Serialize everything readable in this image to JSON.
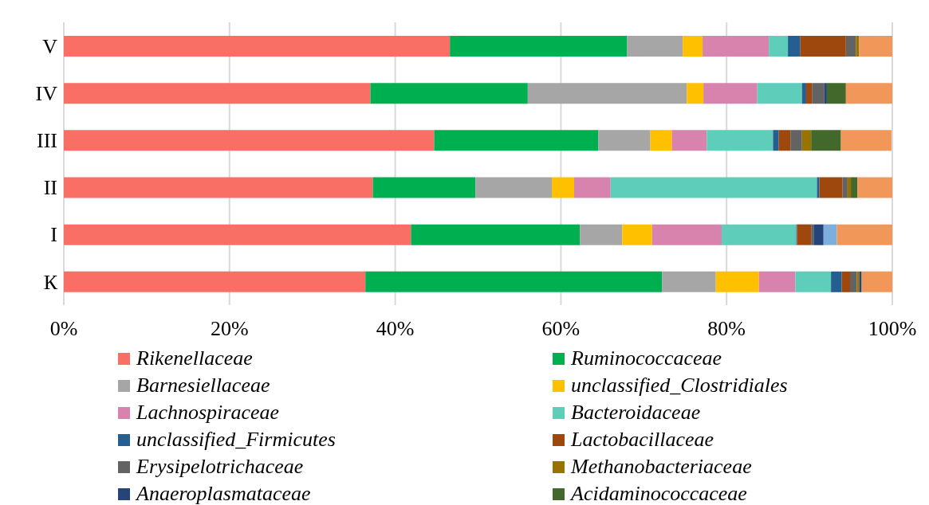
{
  "chart_data": {
    "type": "bar",
    "orientation": "horizontal",
    "stacked": true,
    "grid": "x",
    "legend": "bottom",
    "categories": [
      "V",
      "IV",
      "III",
      "II",
      "I",
      "К"
    ],
    "xlim": [
      0,
      100
    ],
    "xticks": [
      {
        "value": 0,
        "label": "0%"
      },
      {
        "value": 20,
        "label": "20%"
      },
      {
        "value": 40,
        "label": "40%"
      },
      {
        "value": 60,
        "label": "60%"
      },
      {
        "value": 80,
        "label": "80%"
      },
      {
        "value": 100,
        "label": "100%"
      }
    ],
    "series": [
      {
        "name": "Rikenellaceae",
        "color": "#f96f65",
        "values": [
          46.6,
          37.0,
          44.7,
          37.3,
          41.9,
          36.4
        ]
      },
      {
        "name": "Ruminococcaceae",
        "color": "#00b050",
        "values": [
          21.4,
          19.0,
          19.8,
          12.4,
          20.4,
          35.8
        ]
      },
      {
        "name": "Barnesiellaceae",
        "color": "#a6a6a6",
        "values": [
          6.7,
          19.2,
          6.3,
          9.2,
          5.1,
          6.5
        ]
      },
      {
        "name": "unclassified_Clostridiales",
        "color": "#ffc000",
        "values": [
          2.4,
          2.0,
          2.6,
          2.7,
          3.6,
          5.2
        ]
      },
      {
        "name": "Lachnospiraceae",
        "color": "#d883ad",
        "values": [
          8.0,
          6.5,
          4.2,
          4.4,
          8.4,
          4.4
        ]
      },
      {
        "name": "Bacteroidaceae",
        "color": "#5ecdb9",
        "values": [
          2.3,
          5.4,
          8.0,
          24.9,
          9.0,
          4.3
        ]
      },
      {
        "name": "unclassified_Firmicutes",
        "color": "#255e91",
        "values": [
          1.5,
          0.5,
          0.7,
          0.3,
          0.1,
          1.3
        ]
      },
      {
        "name": "Lactobacillaceae",
        "color": "#9e480e",
        "values": [
          5.5,
          0.7,
          1.4,
          2.8,
          1.7,
          1.0
        ]
      },
      {
        "name": "Erysipelotrichaceae",
        "color": "#636363",
        "values": [
          1.2,
          1.5,
          1.4,
          0.6,
          0.3,
          0.8
        ]
      },
      {
        "name": "Methanobacteriaceae",
        "color": "#997300",
        "values": [
          0.4,
          null,
          1.1,
          0.4,
          null,
          0.3
        ]
      },
      {
        "name": "Anaeroplasmataceae",
        "color": "#264478",
        "values": [
          null,
          0.3,
          null,
          null,
          1.2,
          0.3
        ]
      },
      {
        "name": "Acidaminococcaceae",
        "color": "#43682b",
        "values": [
          null,
          2.3,
          3.6,
          0.8,
          null,
          null
        ]
      },
      {
        "color": "#7cafdd",
        "values": [
          null,
          null,
          null,
          null,
          1.6,
          null
        ]
      },
      {
        "color": "#f1975a",
        "values": [
          4.0,
          5.6,
          6.1,
          4.2,
          6.7,
          3.7
        ]
      }
    ]
  }
}
